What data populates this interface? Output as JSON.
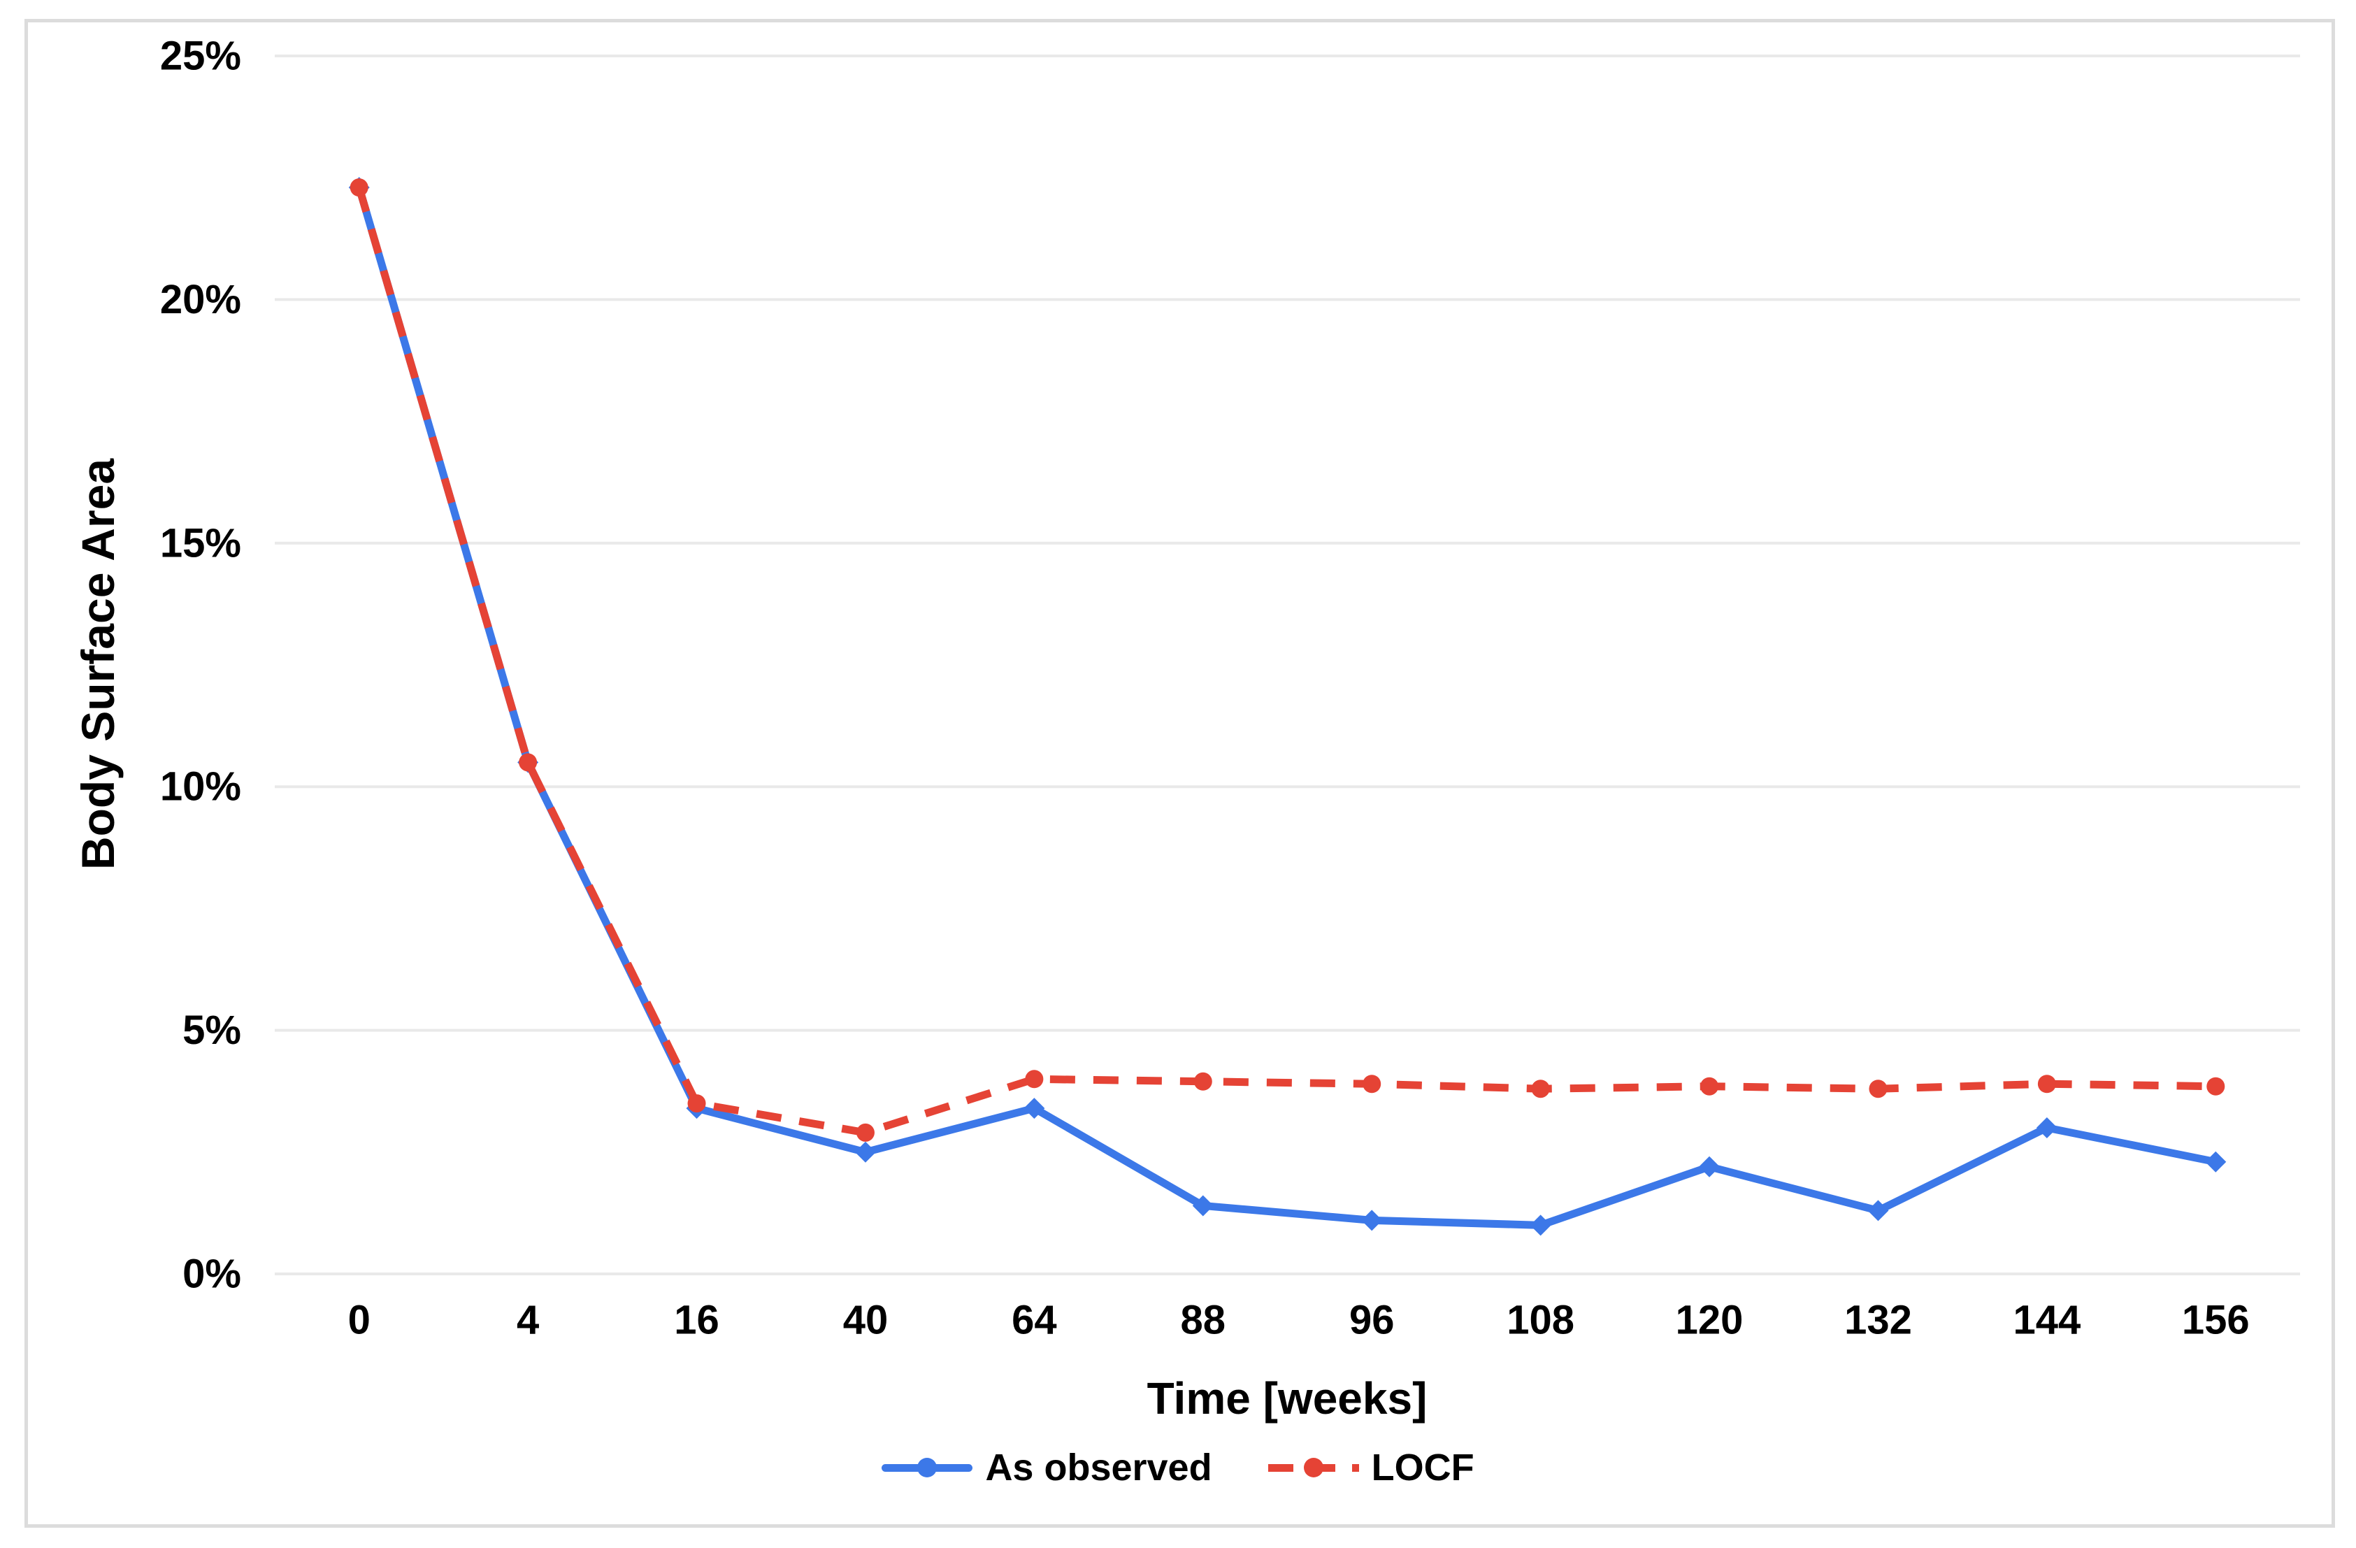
{
  "figure": {
    "background": "#ffffff",
    "border_color": "#dcdcdc"
  },
  "chart_data": {
    "type": "line",
    "title": "",
    "categories": [
      "0",
      "4",
      "16",
      "40",
      "64",
      "88",
      "96",
      "108",
      "120",
      "132",
      "144",
      "156"
    ],
    "series": [
      {
        "name": "As observed",
        "color": "#3c78e8",
        "line_style": "solid",
        "marker": "diamond",
        "values": [
          22.3,
          10.5,
          3.4,
          2.5,
          3.4,
          1.4,
          1.1,
          1.0,
          2.2,
          1.3,
          3.0,
          2.3
        ]
      },
      {
        "name": "LOCF",
        "color": "#e54335",
        "line_style": "dashed",
        "marker": "circle",
        "values": [
          22.3,
          10.5,
          3.5,
          2.9,
          4.0,
          3.95,
          3.9,
          3.8,
          3.85,
          3.8,
          3.9,
          3.85
        ]
      }
    ],
    "xlabel": "Time [weeks]",
    "ylabel": "Body Surface Area",
    "y_ticks": {
      "labels": [
        "0%",
        "5%",
        "10%",
        "15%",
        "20%",
        "25%"
      ],
      "values": [
        0,
        5,
        10,
        15,
        20,
        25
      ]
    },
    "ylim": [
      0,
      25
    ],
    "grid": "horizontal",
    "gridline_color": "#e9e9e9",
    "legend_position": "bottom"
  }
}
